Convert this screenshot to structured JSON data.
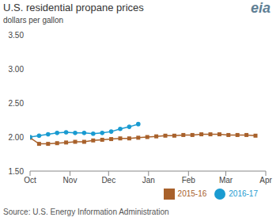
{
  "chart_data": {
    "type": "line",
    "title": "U.S. residential propane prices",
    "subtitle": "dollars per gallon",
    "source": "Source: U.S. Energy Information Administration",
    "logo": "eia",
    "x": [
      0,
      1,
      2,
      3,
      4,
      5,
      6,
      7,
      8,
      9,
      10,
      11,
      12,
      13,
      14,
      15,
      16,
      17,
      18,
      19,
      20,
      21,
      22,
      23,
      24,
      25
    ],
    "xlim": [
      0,
      26.14
    ],
    "xticks": [
      {
        "value": 0,
        "label": "Oct"
      },
      {
        "value": 4.43,
        "label": "Nov"
      },
      {
        "value": 8.71,
        "label": "Dec"
      },
      {
        "value": 13.14,
        "label": "Jan"
      },
      {
        "value": 17.57,
        "label": "Feb"
      },
      {
        "value": 21.71,
        "label": "Mar"
      },
      {
        "value": 26.14,
        "label": "Apr"
      }
    ],
    "ylim": [
      1.5,
      3.5
    ],
    "yticks": [
      {
        "value": 1.5,
        "label": "1.50"
      },
      {
        "value": 2,
        "label": "2.00"
      },
      {
        "value": 2.5,
        "label": "2.50"
      },
      {
        "value": 3,
        "label": "3.00"
      },
      {
        "value": 3.5,
        "label": "3.50"
      }
    ],
    "grid": false,
    "legend": "bottom",
    "series": [
      {
        "name": "2015-16",
        "color": "#a8612b",
        "marker": "square",
        "values": [
          1.99,
          1.9,
          1.9,
          1.91,
          1.92,
          1.93,
          1.93,
          1.95,
          1.96,
          1.97,
          1.98,
          1.98,
          1.99,
          2.0,
          2.01,
          2.02,
          2.02,
          2.03,
          2.03,
          2.04,
          2.04,
          2.04,
          2.03,
          2.03,
          2.03,
          2.02
        ]
      },
      {
        "name": "2016-17",
        "color": "#1a9bd1",
        "marker": "circle",
        "values": [
          2.0,
          2.02,
          2.04,
          2.06,
          2.07,
          2.06,
          2.06,
          2.05,
          2.06,
          2.08,
          2.12,
          2.15,
          2.19,
          null,
          null,
          null,
          null,
          null,
          null,
          null,
          null,
          null,
          null,
          null,
          null,
          null
        ]
      }
    ]
  }
}
